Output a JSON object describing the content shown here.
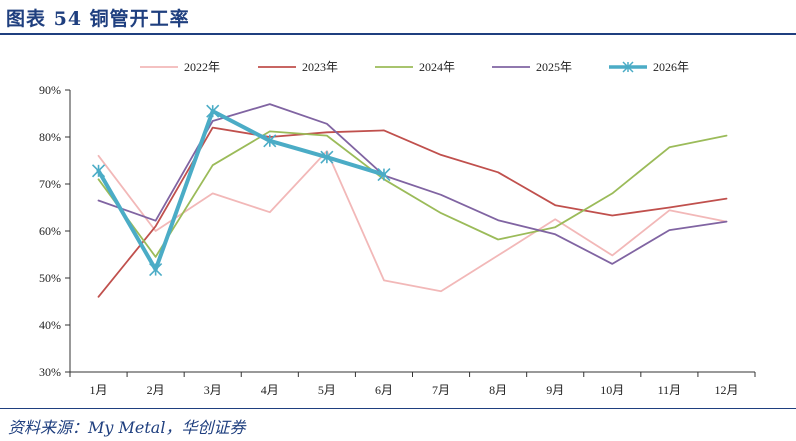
{
  "header": {
    "title": "图表 54    铜管开工率"
  },
  "source": "资料来源：My Metal，华创证券",
  "chart_data": {
    "type": "line",
    "categories": [
      "1月",
      "2月",
      "3月",
      "4月",
      "5月",
      "6月",
      "7月",
      "8月",
      "9月",
      "10月",
      "11月",
      "12月"
    ],
    "y_ticks": [
      "30%",
      "40%",
      "50%",
      "60%",
      "70%",
      "80%",
      "90%"
    ],
    "ylim": [
      30,
      90
    ],
    "legend_position": "top",
    "grid": false,
    "series": [
      {
        "name": "2022年",
        "color": "#f2b8b8",
        "width": 1.8,
        "marker": false,
        "values": [
          76.0,
          60.0,
          68.0,
          64.0,
          77.0,
          49.5,
          47.2,
          54.8,
          62.5,
          54.8,
          64.4,
          62.0
        ]
      },
      {
        "name": "2023年",
        "color": "#c0504d",
        "width": 1.8,
        "marker": false,
        "values": [
          46.0,
          61.0,
          82.0,
          80.0,
          81.0,
          81.4,
          76.2,
          72.5,
          65.5,
          63.3,
          65.0,
          66.9
        ]
      },
      {
        "name": "2024年",
        "color": "#9bbb59",
        "width": 1.8,
        "marker": false,
        "values": [
          71.0,
          54.5,
          74.0,
          81.2,
          80.3,
          71.0,
          63.8,
          58.2,
          60.8,
          68.0,
          77.8,
          80.3
        ]
      },
      {
        "name": "2025年",
        "color": "#8064a2",
        "width": 1.8,
        "marker": false,
        "values": [
          66.5,
          62.2,
          83.4,
          87.0,
          82.8,
          71.8,
          67.7,
          62.3,
          59.3,
          53.0,
          60.2,
          62.0
        ]
      },
      {
        "name": "2026年",
        "color": "#4bacc6",
        "width": 4,
        "marker": true,
        "values": [
          72.8,
          51.8,
          85.5,
          79.2,
          75.7,
          72.0,
          null,
          null,
          null,
          null,
          null,
          null
        ]
      }
    ]
  }
}
